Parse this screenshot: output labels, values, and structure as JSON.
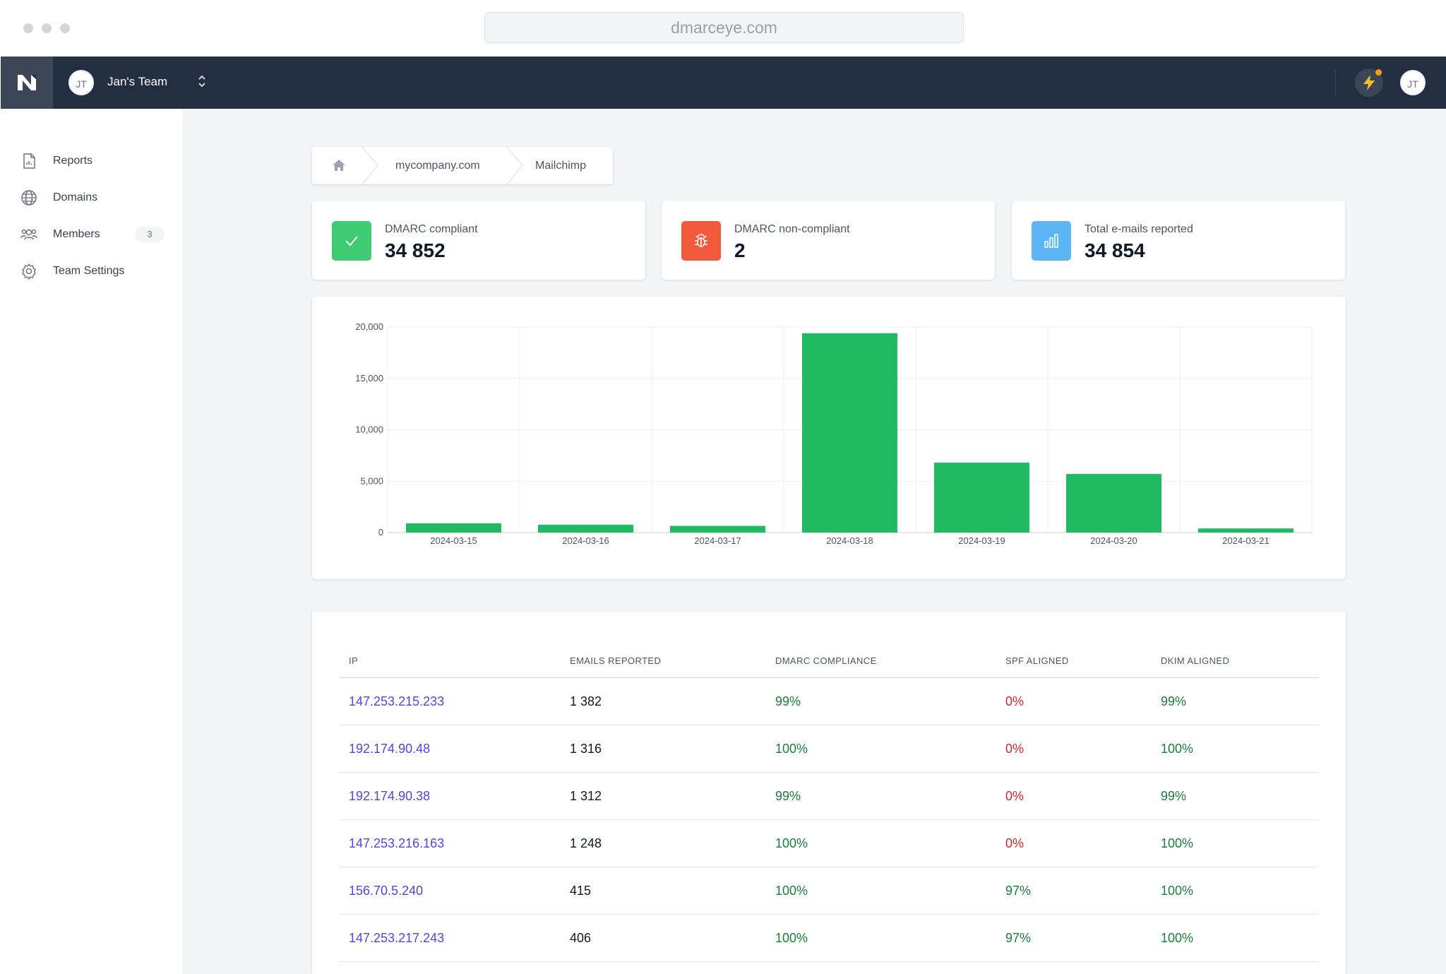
{
  "browser": {
    "url": "dmarceye.com"
  },
  "topbar": {
    "avatar_initials": "JT",
    "team_name": "Jan's Team",
    "user_initials": "JT"
  },
  "sidebar": {
    "items": [
      {
        "label": "Reports",
        "icon": "document-icon"
      },
      {
        "label": "Domains",
        "icon": "globe-icon"
      },
      {
        "label": "Members",
        "icon": "users-icon",
        "badge": "3"
      },
      {
        "label": "Team Settings",
        "icon": "gear-icon"
      }
    ]
  },
  "breadcrumb": {
    "home_icon": "home-icon",
    "items": [
      "mycompany.com",
      "Mailchimp"
    ]
  },
  "stats": [
    {
      "label": "DMARC compliant",
      "value": "34 852",
      "color": "#3ecb74",
      "icon": "check-icon"
    },
    {
      "label": "DMARC non-compliant",
      "value": "2",
      "color": "#f3593b",
      "icon": "bug-icon"
    },
    {
      "label": "Total e-mails reported",
      "value": "34 854",
      "color": "#5cb6f5",
      "icon": "bar-chart-icon"
    }
  ],
  "chart_data": {
    "type": "bar",
    "categories": [
      "2024-03-15",
      "2024-03-16",
      "2024-03-17",
      "2024-03-18",
      "2024-03-19",
      "2024-03-20",
      "2024-03-21"
    ],
    "values": [
      900,
      760,
      650,
      19400,
      6800,
      5700,
      400
    ],
    "y_ticks": [
      "0",
      "5,000",
      "10,000",
      "15,000",
      "20,000"
    ],
    "ylim": [
      0,
      20000
    ],
    "grid": true,
    "bar_color": "#1fba62"
  },
  "table": {
    "headers": [
      "IP",
      "EMAILS REPORTED",
      "DMARC COMPLIANCE",
      "SPF ALIGNED",
      "DKIM ALIGNED"
    ],
    "rows": [
      [
        "147.253.215.233",
        "1 382",
        "99%",
        "0%",
        "99%"
      ],
      [
        "192.174.90.48",
        "1 316",
        "100%",
        "0%",
        "100%"
      ],
      [
        "192.174.90.38",
        "1 312",
        "99%",
        "0%",
        "99%"
      ],
      [
        "147.253.216.163",
        "1 248",
        "100%",
        "0%",
        "100%"
      ],
      [
        "156.70.5.240",
        "415",
        "100%",
        "97%",
        "100%"
      ],
      [
        "147.253.217.243",
        "406",
        "100%",
        "97%",
        "100%"
      ]
    ]
  }
}
